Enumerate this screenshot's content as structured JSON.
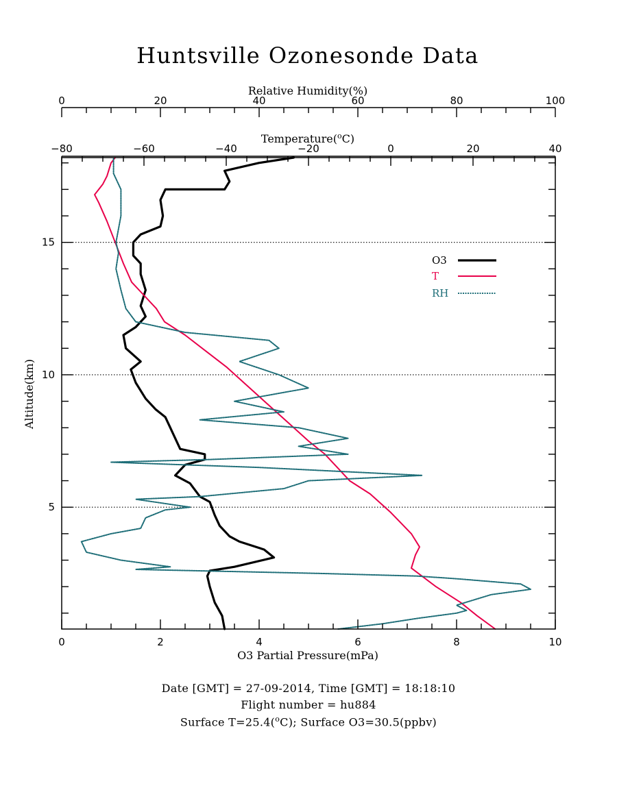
{
  "chart_data": {
    "type": "line",
    "title": "Huntsville Ozonesonde Data",
    "ylabel": "Altitude(km)",
    "ylim": [
      0.4,
      18.2
    ],
    "yticks": [
      {
        "value": 5,
        "label": "5"
      },
      {
        "value": 10,
        "label": "10"
      },
      {
        "value": 15,
        "label": "15"
      }
    ],
    "dotted_grid_at": [
      5,
      10,
      15
    ],
    "axes": {
      "ozone": {
        "label": "O3 Partial Pressure(mPa)",
        "range": [
          0,
          10
        ],
        "ticks": [
          "0",
          "2",
          "4",
          "6",
          "8",
          "10"
        ]
      },
      "temperature": {
        "label": "Temperature(°C)",
        "label_base": "Temperature(",
        "label_sup": "o",
        "label_end": "C)",
        "range": [
          -80,
          40
        ],
        "ticks": [
          "−80",
          "−60",
          "−40",
          "−20",
          "0",
          "20",
          "40"
        ]
      },
      "humidity": {
        "label": "Relative Humidity(%)",
        "range": [
          0,
          100
        ],
        "ticks": [
          "0",
          "20",
          "40",
          "60",
          "80",
          "100"
        ]
      }
    },
    "legend": {
      "placement": "right",
      "items": [
        {
          "name": "O3",
          "color": "#000000"
        },
        {
          "name": "T",
          "color": "#e8004a"
        },
        {
          "name": "RH",
          "color": "#1e6e78"
        }
      ]
    },
    "series": [
      {
        "name": "O3",
        "axis": "ozone",
        "color": "#000000",
        "points": [
          [
            3.3,
            0.4
          ],
          [
            3.25,
            0.9
          ],
          [
            3.1,
            1.4
          ],
          [
            3.0,
            2.0
          ],
          [
            2.95,
            2.4
          ],
          [
            3.0,
            2.6
          ],
          [
            3.5,
            2.75
          ],
          [
            4.3,
            3.1
          ],
          [
            4.1,
            3.4
          ],
          [
            3.6,
            3.7
          ],
          [
            3.4,
            3.9
          ],
          [
            3.2,
            4.3
          ],
          [
            3.1,
            4.7
          ],
          [
            3.0,
            5.2
          ],
          [
            2.8,
            5.4
          ],
          [
            2.6,
            5.9
          ],
          [
            2.3,
            6.2
          ],
          [
            2.5,
            6.6
          ],
          [
            2.9,
            6.8
          ],
          [
            2.9,
            7.0
          ],
          [
            2.4,
            7.2
          ],
          [
            2.3,
            7.6
          ],
          [
            2.2,
            8.0
          ],
          [
            2.1,
            8.4
          ],
          [
            1.9,
            8.7
          ],
          [
            1.7,
            9.1
          ],
          [
            1.5,
            9.7
          ],
          [
            1.4,
            10.2
          ],
          [
            1.6,
            10.5
          ],
          [
            1.3,
            11.0
          ],
          [
            1.25,
            11.5
          ],
          [
            1.5,
            11.8
          ],
          [
            1.7,
            12.2
          ],
          [
            1.6,
            12.6
          ],
          [
            1.7,
            13.2
          ],
          [
            1.6,
            13.8
          ],
          [
            1.6,
            14.2
          ],
          [
            1.45,
            14.5
          ],
          [
            1.45,
            15.0
          ],
          [
            1.6,
            15.3
          ],
          [
            2.0,
            15.6
          ],
          [
            2.05,
            16.0
          ],
          [
            2.0,
            16.6
          ],
          [
            2.1,
            17.0
          ],
          [
            3.3,
            17.0
          ],
          [
            3.4,
            17.3
          ],
          [
            3.3,
            17.7
          ],
          [
            4.0,
            18.0
          ],
          [
            4.7,
            18.2
          ]
        ]
      },
      {
        "name": "T",
        "axis": "temperature",
        "color": "#e8004a",
        "points": [
          [
            25.4,
            0.4
          ],
          [
            21,
            0.9
          ],
          [
            17,
            1.4
          ],
          [
            11,
            2.0
          ],
          [
            5,
            2.7
          ],
          [
            6,
            3.2
          ],
          [
            7,
            3.5
          ],
          [
            5,
            4.0
          ],
          [
            0,
            4.8
          ],
          [
            -5,
            5.5
          ],
          [
            -10,
            6.0
          ],
          [
            -13,
            6.5
          ],
          [
            -16,
            7.0
          ],
          [
            -20,
            7.5
          ],
          [
            -25,
            8.2
          ],
          [
            -30,
            8.9
          ],
          [
            -35,
            9.6
          ],
          [
            -40,
            10.3
          ],
          [
            -45,
            10.9
          ],
          [
            -50,
            11.5
          ],
          [
            -55,
            12.0
          ],
          [
            -57,
            12.5
          ],
          [
            -60,
            13.0
          ],
          [
            -63,
            13.5
          ],
          [
            -65,
            14.2
          ],
          [
            -67,
            15.0
          ],
          [
            -69,
            15.8
          ],
          [
            -71,
            16.5
          ],
          [
            -72,
            16.8
          ],
          [
            -70,
            17.2
          ],
          [
            -69,
            17.5
          ],
          [
            -68,
            18.0
          ],
          [
            -67,
            18.2
          ]
        ]
      },
      {
        "name": "RH",
        "axis": "humidity",
        "color": "#1e6e78",
        "points": [
          [
            56,
            0.4
          ],
          [
            65,
            0.6
          ],
          [
            72,
            0.8
          ],
          [
            80,
            1.0
          ],
          [
            82,
            1.1
          ],
          [
            80,
            1.3
          ],
          [
            87,
            1.7
          ],
          [
            95,
            1.9
          ],
          [
            93,
            2.1
          ],
          [
            80,
            2.3
          ],
          [
            72,
            2.4
          ],
          [
            52,
            2.5
          ],
          [
            15,
            2.65
          ],
          [
            22,
            2.75
          ],
          [
            12,
            3.0
          ],
          [
            5,
            3.3
          ],
          [
            4,
            3.7
          ],
          [
            10,
            4.0
          ],
          [
            16,
            4.2
          ],
          [
            17,
            4.6
          ],
          [
            21,
            4.9
          ],
          [
            26,
            5.0
          ],
          [
            15,
            5.3
          ],
          [
            28,
            5.4
          ],
          [
            45,
            5.7
          ],
          [
            50,
            6.0
          ],
          [
            73,
            6.2
          ],
          [
            40,
            6.5
          ],
          [
            10,
            6.7
          ],
          [
            30,
            6.8
          ],
          [
            58,
            7.0
          ],
          [
            48,
            7.3
          ],
          [
            58,
            7.6
          ],
          [
            48,
            8.0
          ],
          [
            28,
            8.3
          ],
          [
            45,
            8.6
          ],
          [
            35,
            9.0
          ],
          [
            50,
            9.5
          ],
          [
            44,
            10.0
          ],
          [
            36,
            10.5
          ],
          [
            44,
            11.0
          ],
          [
            42,
            11.3
          ],
          [
            25,
            11.6
          ],
          [
            15,
            12.0
          ],
          [
            13,
            12.5
          ],
          [
            12,
            13.2
          ],
          [
            11,
            14.0
          ],
          [
            11.5,
            14.6
          ],
          [
            11,
            15.0
          ],
          [
            12,
            16.0
          ],
          [
            12,
            17.0
          ],
          [
            10.5,
            17.6
          ],
          [
            10.5,
            18.2
          ]
        ]
      }
    ]
  },
  "footer": {
    "line1": "Date [GMT] = 27-09-2014,  Time [GMT] = 18:18:10",
    "line2": "Flight number = hu884",
    "line3_a": "Surface T=25.4(",
    "line3_sup": "o",
    "line3_b": "C); Surface O3=30.5(ppbv)"
  }
}
